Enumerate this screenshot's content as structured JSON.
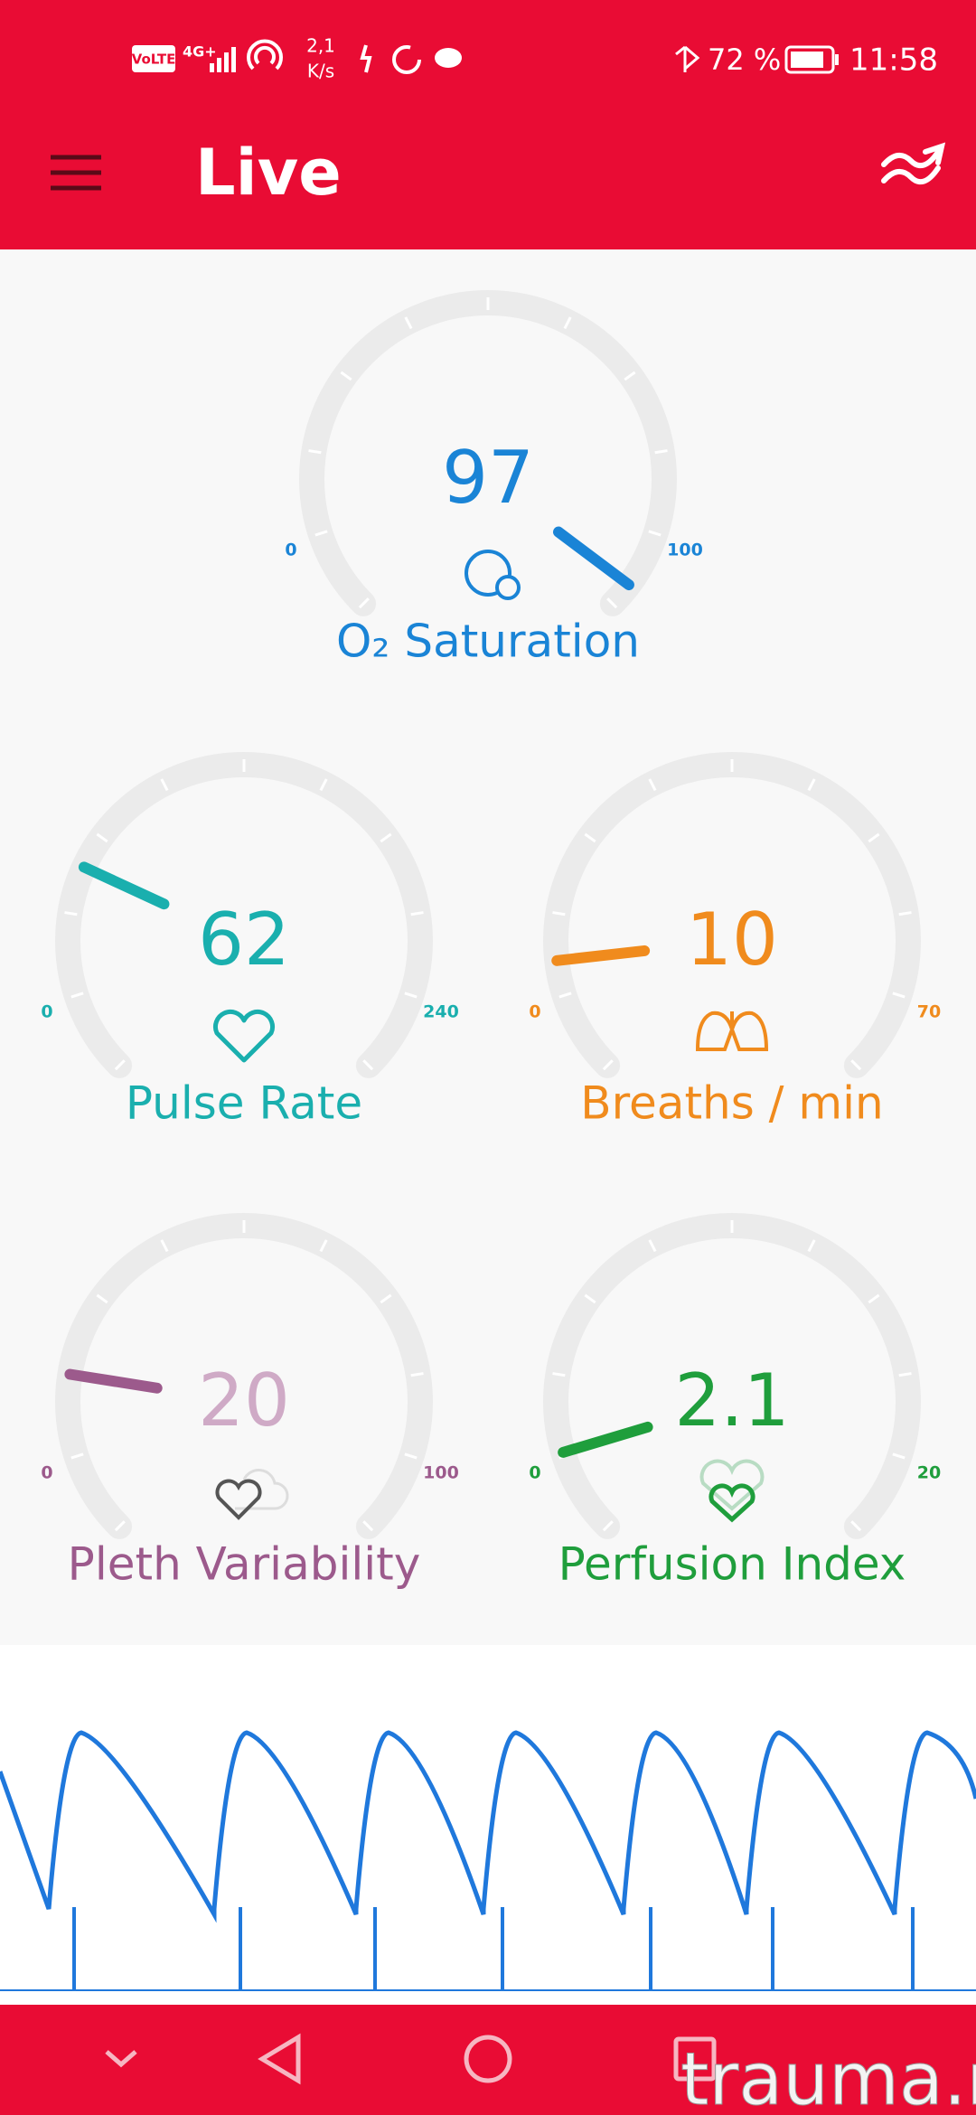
{
  "status_bar": {
    "network": "VoLTE",
    "signal": "4G+",
    "speed": "2,1",
    "speed_unit": "K/s",
    "battery": "72 %",
    "time": "11:58"
  },
  "app_bar": {
    "title": "Live"
  },
  "gauges": [
    {
      "value": 97,
      "min": 0,
      "max": 100,
      "label": "O₂ Saturation",
      "color": "#1a84d6"
    },
    {
      "value": 62,
      "min": 0,
      "max": 240,
      "label": "Pulse Rate",
      "color": "#1aafae"
    },
    {
      "value": 10,
      "min": 0,
      "max": 70,
      "label": "Breaths / min",
      "color": "#f08b1d"
    },
    {
      "value": 20,
      "min": 0,
      "max": 100,
      "label": "Pleth Variability",
      "color": "#9c5a8c",
      "value_color": "#cfaac6"
    },
    {
      "value": 2.1,
      "min": 0,
      "max": 20,
      "label": "Perfusion Index",
      "color": "#1f9e3c"
    }
  ],
  "watermark": "trauma.ru"
}
